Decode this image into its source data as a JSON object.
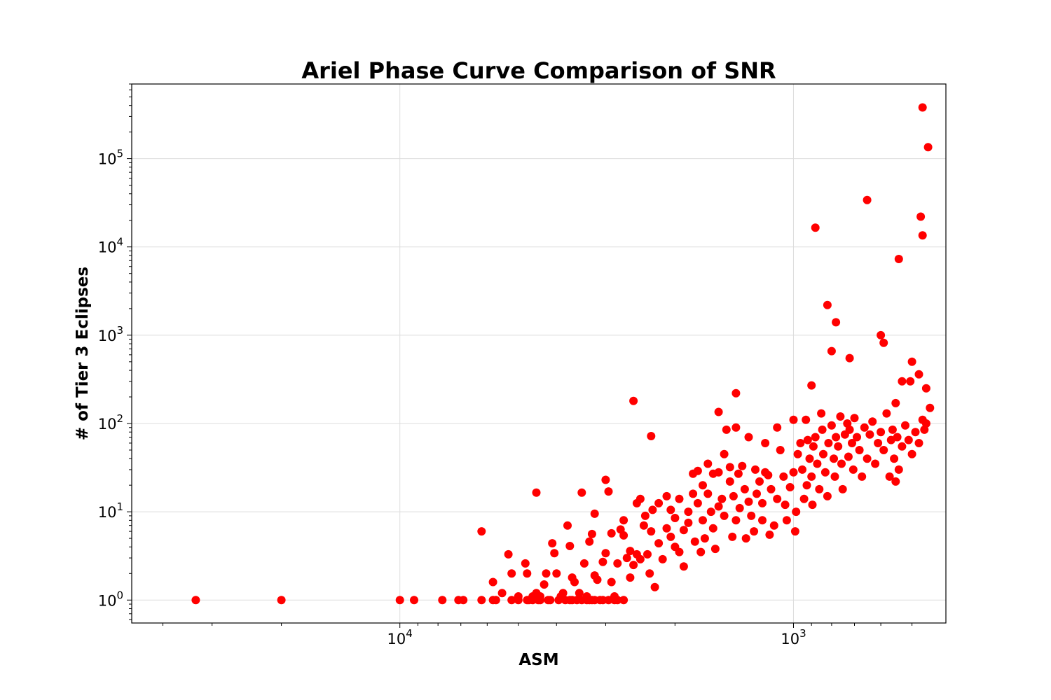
{
  "chart_data": {
    "type": "scatter",
    "title": "Ariel Phase Curve Comparison of SNR",
    "xlabel": "ASM",
    "ylabel": "# of Tier 3 Eclipses",
    "x_scale": "log",
    "x_axis_inverted": true,
    "y_scale": "log",
    "xlim": [
      48000,
      410
    ],
    "ylim": [
      0.55,
      700000
    ],
    "x_ticks": [
      {
        "base": "10",
        "exp": "4",
        "value": 10000
      },
      {
        "base": "10",
        "exp": "3",
        "value": 1000
      }
    ],
    "y_ticks": [
      {
        "base": "10",
        "exp": "0",
        "value": 1
      },
      {
        "base": "10",
        "exp": "1",
        "value": 10
      },
      {
        "base": "10",
        "exp": "2",
        "value": 100
      },
      {
        "base": "10",
        "exp": "3",
        "value": 1000
      },
      {
        "base": "10",
        "exp": "4",
        "value": 10000
      },
      {
        "base": "10",
        "exp": "5",
        "value": 100000
      }
    ],
    "grid": true,
    "marker_color": "#ff0000",
    "points": [
      [
        33000,
        1
      ],
      [
        20000,
        1
      ],
      [
        10000,
        1
      ],
      [
        9200,
        1
      ],
      [
        7800,
        1
      ],
      [
        7100,
        1
      ],
      [
        6900,
        1
      ],
      [
        6200,
        1
      ],
      [
        5800,
        1
      ],
      [
        5700,
        1
      ],
      [
        5200,
        1
      ],
      [
        5000,
        1
      ],
      [
        4750,
        1
      ],
      [
        4700,
        1
      ],
      [
        4600,
        1
      ],
      [
        4450,
        1
      ],
      [
        4400,
        1
      ],
      [
        4200,
        1
      ],
      [
        4150,
        1
      ],
      [
        3950,
        1
      ],
      [
        3800,
        1
      ],
      [
        3700,
        1
      ],
      [
        3650,
        1
      ],
      [
        3550,
        1
      ],
      [
        3450,
        1
      ],
      [
        3350,
        1
      ],
      [
        3300,
        1
      ],
      [
        3250,
        1
      ],
      [
        3200,
        1
      ],
      [
        3100,
        1
      ],
      [
        3050,
        1
      ],
      [
        2950,
        1
      ],
      [
        2850,
        1
      ],
      [
        2800,
        1
      ],
      [
        2700,
        1
      ],
      [
        6200,
        6
      ],
      [
        4500,
        16.5
      ],
      [
        3450,
        16.5
      ],
      [
        2550,
        180
      ],
      [
        2300,
        72
      ],
      [
        1550,
        135
      ],
      [
        1400,
        220
      ],
      [
        900,
        270
      ],
      [
        880,
        16500
      ],
      [
        820,
        2200
      ],
      [
        800,
        660
      ],
      [
        780,
        1400
      ],
      [
        720,
        550
      ],
      [
        650,
        34000
      ],
      [
        600,
        1000
      ],
      [
        590,
        820
      ],
      [
        540,
        7300
      ],
      [
        470,
        380000
      ],
      [
        455,
        135000
      ],
      [
        475,
        22000
      ],
      [
        470,
        13500
      ],
      [
        530,
        300
      ],
      [
        500,
        500
      ],
      [
        480,
        360
      ],
      [
        460,
        250
      ],
      [
        450,
        150
      ],
      [
        550,
        170
      ],
      [
        5800,
        1.6
      ],
      [
        5500,
        1.2
      ],
      [
        5300,
        3.3
      ],
      [
        5200,
        2
      ],
      [
        5000,
        1.1
      ],
      [
        4800,
        2.6
      ],
      [
        4750,
        2
      ],
      [
        4600,
        1.1
      ],
      [
        4500,
        1.2
      ],
      [
        4400,
        1.1
      ],
      [
        4300,
        1.5
      ],
      [
        4250,
        2
      ],
      [
        4100,
        4.4
      ],
      [
        4050,
        3.4
      ],
      [
        4000,
        2
      ],
      [
        3900,
        1.1
      ],
      [
        3850,
        1.2
      ],
      [
        3750,
        7
      ],
      [
        3700,
        4.1
      ],
      [
        3650,
        1.8
      ],
      [
        3600,
        1.6
      ],
      [
        3500,
        1.2
      ],
      [
        3400,
        2.6
      ],
      [
        3350,
        1.1
      ],
      [
        3300,
        4.6
      ],
      [
        3250,
        5.6
      ],
      [
        3200,
        9.5
      ],
      [
        3200,
        1.9
      ],
      [
        3150,
        1.7
      ],
      [
        3050,
        2.7
      ],
      [
        3000,
        23
      ],
      [
        3000,
        3.4
      ],
      [
        2950,
        17
      ],
      [
        2900,
        5.7
      ],
      [
        2900,
        1.6
      ],
      [
        2850,
        1.1
      ],
      [
        2800,
        2.6
      ],
      [
        2750,
        6.3
      ],
      [
        2700,
        8
      ],
      [
        2700,
        5.4
      ],
      [
        2650,
        3
      ],
      [
        2600,
        3.6
      ],
      [
        2600,
        1.8
      ],
      [
        2550,
        2.5
      ],
      [
        2500,
        3.3
      ],
      [
        2500,
        12.5
      ],
      [
        2450,
        14
      ],
      [
        2450,
        2.9
      ],
      [
        2400,
        7
      ],
      [
        2380,
        9
      ],
      [
        2350,
        3.3
      ],
      [
        2320,
        2
      ],
      [
        2300,
        6
      ],
      [
        2280,
        10.5
      ],
      [
        2250,
        1.4
      ],
      [
        2200,
        12.5
      ],
      [
        2200,
        4.4
      ],
      [
        2150,
        2.9
      ],
      [
        2100,
        6.5
      ],
      [
        2100,
        15
      ],
      [
        2050,
        10.5
      ],
      [
        2050,
        5.2
      ],
      [
        2000,
        8.5
      ],
      [
        2000,
        4
      ],
      [
        1950,
        14
      ],
      [
        1950,
        3.5
      ],
      [
        1900,
        6.2
      ],
      [
        1900,
        2.4
      ],
      [
        1850,
        10
      ],
      [
        1850,
        7.5
      ],
      [
        1800,
        16
      ],
      [
        1800,
        27
      ],
      [
        1780,
        4.6
      ],
      [
        1750,
        12.5
      ],
      [
        1750,
        29
      ],
      [
        1720,
        3.5
      ],
      [
        1700,
        8
      ],
      [
        1700,
        20
      ],
      [
        1680,
        5
      ],
      [
        1650,
        16
      ],
      [
        1650,
        35
      ],
      [
        1620,
        10
      ],
      [
        1600,
        27
      ],
      [
        1600,
        6.5
      ],
      [
        1580,
        3.8
      ],
      [
        1550,
        28
      ],
      [
        1550,
        11.5
      ],
      [
        1520,
        14
      ],
      [
        1500,
        9
      ],
      [
        1500,
        45
      ],
      [
        1480,
        85
      ],
      [
        1450,
        32
      ],
      [
        1450,
        22
      ],
      [
        1430,
        5.2
      ],
      [
        1420,
        15
      ],
      [
        1400,
        90
      ],
      [
        1400,
        8
      ],
      [
        1380,
        27
      ],
      [
        1370,
        11
      ],
      [
        1350,
        33
      ],
      [
        1330,
        18
      ],
      [
        1320,
        5
      ],
      [
        1300,
        13
      ],
      [
        1300,
        70
      ],
      [
        1280,
        9
      ],
      [
        1260,
        6
      ],
      [
        1250,
        30
      ],
      [
        1240,
        16
      ],
      [
        1220,
        22
      ],
      [
        1200,
        8
      ],
      [
        1200,
        12.5
      ],
      [
        1180,
        60
      ],
      [
        1180,
        28
      ],
      [
        1160,
        26
      ],
      [
        1150,
        5.5
      ],
      [
        1140,
        18
      ],
      [
        1120,
        7
      ],
      [
        1100,
        90
      ],
      [
        1100,
        14
      ],
      [
        1080,
        50
      ],
      [
        1060,
        25
      ],
      [
        1050,
        12
      ],
      [
        1040,
        8
      ],
      [
        1020,
        19
      ],
      [
        1000,
        110
      ],
      [
        1000,
        28
      ],
      [
        990,
        6
      ],
      [
        985,
        10
      ],
      [
        975,
        45
      ],
      [
        960,
        60
      ],
      [
        950,
        30
      ],
      [
        940,
        14
      ],
      [
        930,
        110
      ],
      [
        925,
        20
      ],
      [
        920,
        65
      ],
      [
        910,
        40
      ],
      [
        900,
        25
      ],
      [
        895,
        12
      ],
      [
        890,
        55
      ],
      [
        880,
        70
      ],
      [
        870,
        35
      ],
      [
        860,
        18
      ],
      [
        850,
        130
      ],
      [
        845,
        85
      ],
      [
        840,
        45
      ],
      [
        830,
        28
      ],
      [
        820,
        15
      ],
      [
        815,
        60
      ],
      [
        800,
        95
      ],
      [
        790,
        40
      ],
      [
        785,
        25
      ],
      [
        780,
        70
      ],
      [
        770,
        55
      ],
      [
        760,
        120
      ],
      [
        755,
        35
      ],
      [
        750,
        18
      ],
      [
        740,
        75
      ],
      [
        730,
        100
      ],
      [
        725,
        42
      ],
      [
        720,
        85
      ],
      [
        710,
        60
      ],
      [
        705,
        30
      ],
      [
        700,
        115
      ],
      [
        690,
        70
      ],
      [
        680,
        50
      ],
      [
        670,
        25
      ],
      [
        660,
        90
      ],
      [
        650,
        40
      ],
      [
        640,
        75
      ],
      [
        630,
        105
      ],
      [
        620,
        35
      ],
      [
        610,
        60
      ],
      [
        600,
        80
      ],
      [
        590,
        50
      ],
      [
        580,
        130
      ],
      [
        570,
        25
      ],
      [
        565,
        65
      ],
      [
        560,
        85
      ],
      [
        555,
        40
      ],
      [
        550,
        22
      ],
      [
        545,
        70
      ],
      [
        540,
        30
      ],
      [
        530,
        55
      ],
      [
        520,
        95
      ],
      [
        510,
        65
      ],
      [
        505,
        300
      ],
      [
        500,
        45
      ],
      [
        490,
        80
      ],
      [
        480,
        60
      ],
      [
        470,
        110
      ],
      [
        465,
        85
      ],
      [
        460,
        100
      ]
    ]
  }
}
